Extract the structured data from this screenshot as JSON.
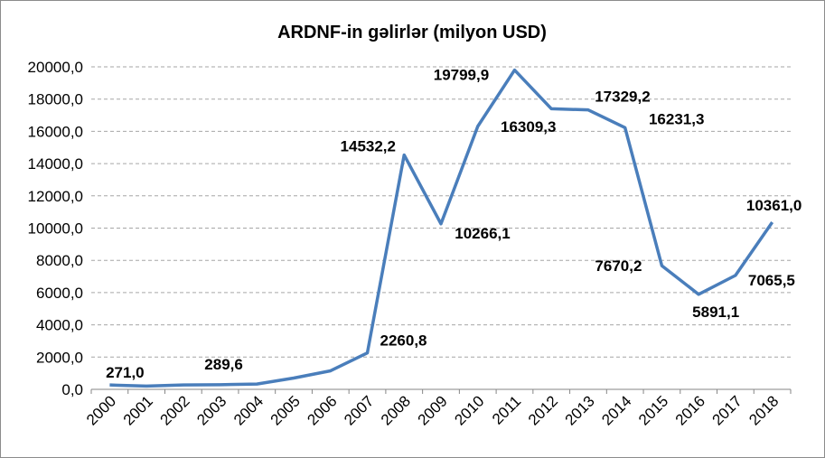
{
  "chart_data": {
    "type": "line",
    "title": "ARDNF-in gəlirlər (milyon USD)",
    "x": [
      "2000",
      "2001",
      "2002",
      "2003",
      "2004",
      "2005",
      "2006",
      "2007",
      "2008",
      "2009",
      "2010",
      "2011",
      "2012",
      "2013",
      "2014",
      "2015",
      "2016",
      "2017",
      "2018"
    ],
    "series": [
      {
        "values": [
          271.0,
          200,
          270,
          289.6,
          330,
          700,
          1150,
          2260.8,
          14532.2,
          10266.1,
          16309.3,
          19799.9,
          17400,
          17329.2,
          16231.3,
          7670.2,
          5891.1,
          7065.5,
          10361.0
        ]
      }
    ],
    "data_labels": [
      {
        "index": 0,
        "text": "271,0"
      },
      {
        "index": 3,
        "text": "289,6"
      },
      {
        "index": 7,
        "text": "2260,8"
      },
      {
        "index": 8,
        "text": "14532,2"
      },
      {
        "index": 9,
        "text": "10266,1"
      },
      {
        "index": 10,
        "text": "16309,3"
      },
      {
        "index": 11,
        "text": "19799,9"
      },
      {
        "index": 13,
        "text": "17329,2"
      },
      {
        "index": 14,
        "text": "16231,3"
      },
      {
        "index": 15,
        "text": "7670,2"
      },
      {
        "index": 16,
        "text": "5891,1"
      },
      {
        "index": 17,
        "text": "7065,5"
      },
      {
        "index": 18,
        "text": "10361,0"
      }
    ],
    "y_ticks": [
      "0,0",
      "2000,0",
      "4000,0",
      "6000,0",
      "8000,0",
      "10000,0",
      "12000,0",
      "14000,0",
      "16000,0",
      "18000,0",
      "20000,0"
    ],
    "ylim": [
      0,
      20000
    ],
    "grid": true,
    "line_color": "#4a7ebb"
  }
}
